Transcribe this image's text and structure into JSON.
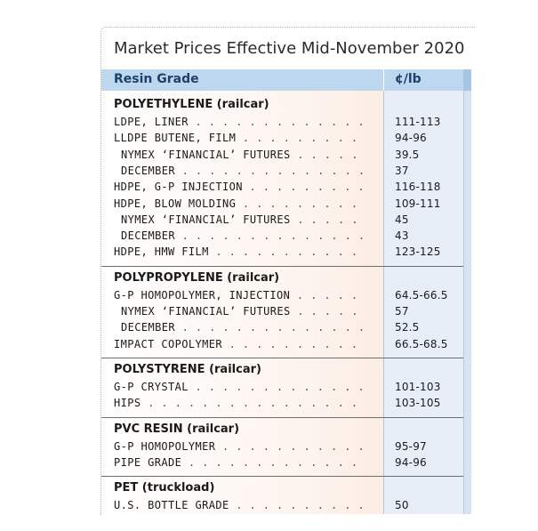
{
  "title": "Market Prices Effective Mid-November 2020",
  "header": {
    "grade": "Resin Grade",
    "price": "¢/lb"
  },
  "sections": [
    {
      "title": "POLYETHYLENE (railcar)",
      "rows": [
        {
          "label": "LDPE, LINER",
          "value": "111-113",
          "indent": false
        },
        {
          "label": "LLDPE BUTENE, FILM",
          "value": "94-96",
          "indent": false
        },
        {
          "label": "NYMEX ‘FINANCIAL’ FUTURES",
          "value": "39.5",
          "indent": true
        },
        {
          "label": "DECEMBER",
          "value": "37",
          "indent": true
        },
        {
          "label": "HDPE, G-P INJECTION",
          "value": "116-118",
          "indent": false
        },
        {
          "label": "HDPE, BLOW MOLDING",
          "value": "109-111",
          "indent": false
        },
        {
          "label": "NYMEX ‘FINANCIAL’ FUTURES",
          "value": "45",
          "indent": true
        },
        {
          "label": "DECEMBER",
          "value": "43",
          "indent": true
        },
        {
          "label": "HDPE, HMW FILM",
          "value": "123-125",
          "indent": false
        }
      ]
    },
    {
      "title": "POLYPROPYLENE (railcar)",
      "rows": [
        {
          "label": "G-P HOMOPOLYMER, INJECTION",
          "value": "64.5-66.5",
          "indent": false
        },
        {
          "label": "NYMEX ‘FINANCIAL’ FUTURES",
          "value": "57",
          "indent": true
        },
        {
          "label": "DECEMBER",
          "value": "52.5",
          "indent": true
        },
        {
          "label": "IMPACT COPOLYMER",
          "value": "66.5-68.5",
          "indent": false
        }
      ]
    },
    {
      "title": "POLYSTYRENE (railcar)",
      "rows": [
        {
          "label": "G-P CRYSTAL",
          "value": "101-103",
          "indent": false
        },
        {
          "label": "HIPS",
          "value": "103-105",
          "indent": false
        }
      ]
    },
    {
      "title": "PVC RESIN (railcar)",
      "rows": [
        {
          "label": "G-P HOMOPOLYMER",
          "value": "95-97",
          "indent": false
        },
        {
          "label": "PIPE GRADE",
          "value": "94-96",
          "indent": false
        }
      ]
    },
    {
      "title": "PET (truckload)",
      "rows": [
        {
          "label": "U.S. BOTTLE GRADE",
          "value": "50",
          "indent": false
        }
      ]
    }
  ],
  "colors": {
    "header_bg": "#bdd7ee",
    "header_text": "#1f3f6d",
    "price_column_bg": "#e7eef8",
    "row_bg_gradient_end": "#f9e5d8"
  }
}
